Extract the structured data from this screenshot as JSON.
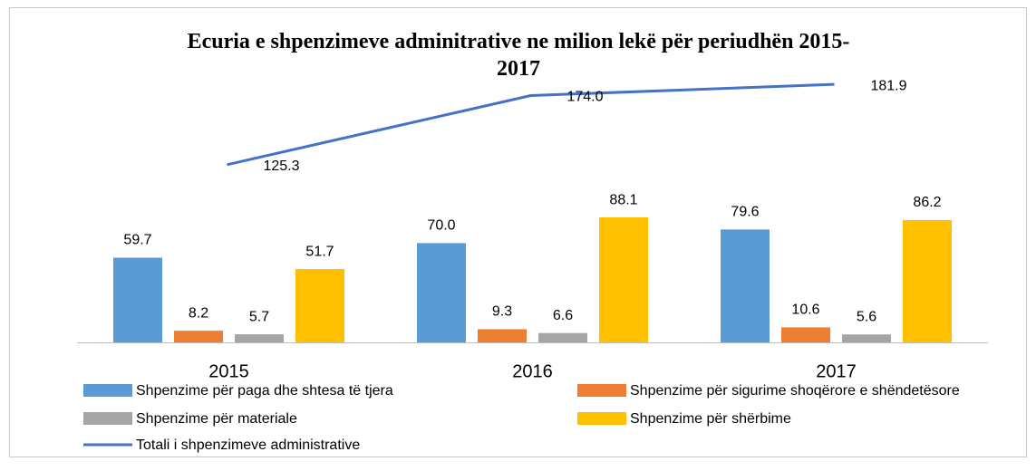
{
  "chart_data": {
    "type": "bar",
    "title": "Ecuria e shpenzimeve adminitrative ne milion lekë për periudhën 2015-2017",
    "categories": [
      "2015",
      "2016",
      "2017"
    ],
    "ylim": [
      0,
      200
    ],
    "series": [
      {
        "name": "Shpenzime për paga dhe shtesa të tjera",
        "color": "#5b9bd5",
        "values": [
          59.7,
          70.0,
          79.6
        ],
        "value_labels": [
          "59.7",
          "70.0",
          "79.6"
        ]
      },
      {
        "name": "Shpenzime për sigurime shoqërore e shëndetësore",
        "color": "#ed7d31",
        "values": [
          8.2,
          9.3,
          10.6
        ]
      },
      {
        "name": "Shpenzime për materiale",
        "color": "#a5a5a5",
        "values": [
          5.7,
          6.6,
          5.6
        ]
      },
      {
        "name": "Shpenzime për shërbime",
        "color": "#ffc000",
        "values": [
          51.7,
          88.1,
          86.2
        ]
      },
      {
        "name": "Totali i shpenzimeve administrative",
        "type": "line",
        "color": "#4472c4",
        "values": [
          125.3,
          174.0,
          181.9
        ],
        "value_labels": [
          "125.3",
          "174.0",
          "181.9"
        ]
      }
    ]
  }
}
